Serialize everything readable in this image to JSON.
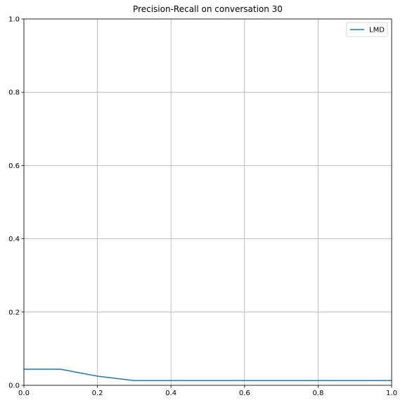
{
  "chart_data": {
    "type": "line",
    "title": "Precision-Recall on conversation 30",
    "x": [
      0,
      0.1,
      0.2,
      0.3,
      0.4,
      0.5,
      0.6,
      0.7,
      0.8,
      0.9,
      1.0
    ],
    "series": [
      {
        "name": "LMD",
        "color": "#1f77b4",
        "values": [
          0.044,
          0.044,
          0.025,
          0.013,
          0.013,
          0.013,
          0.013,
          0.013,
          0.013,
          0.013,
          0.013
        ]
      }
    ],
    "xlim": [
      0,
      1
    ],
    "ylim": [
      0,
      1
    ],
    "xticks": [
      {
        "value": 0,
        "label": "0.0"
      },
      0.2,
      0.4,
      0.6,
      0.8,
      {
        "value": 1,
        "label": "1.0"
      }
    ],
    "yticks": [
      {
        "value": 0,
        "label": "0.0"
      },
      0.2,
      0.4,
      0.6,
      0.8,
      {
        "value": 1,
        "label": "1.0"
      }
    ],
    "grid": true,
    "legend": "upper right"
  }
}
